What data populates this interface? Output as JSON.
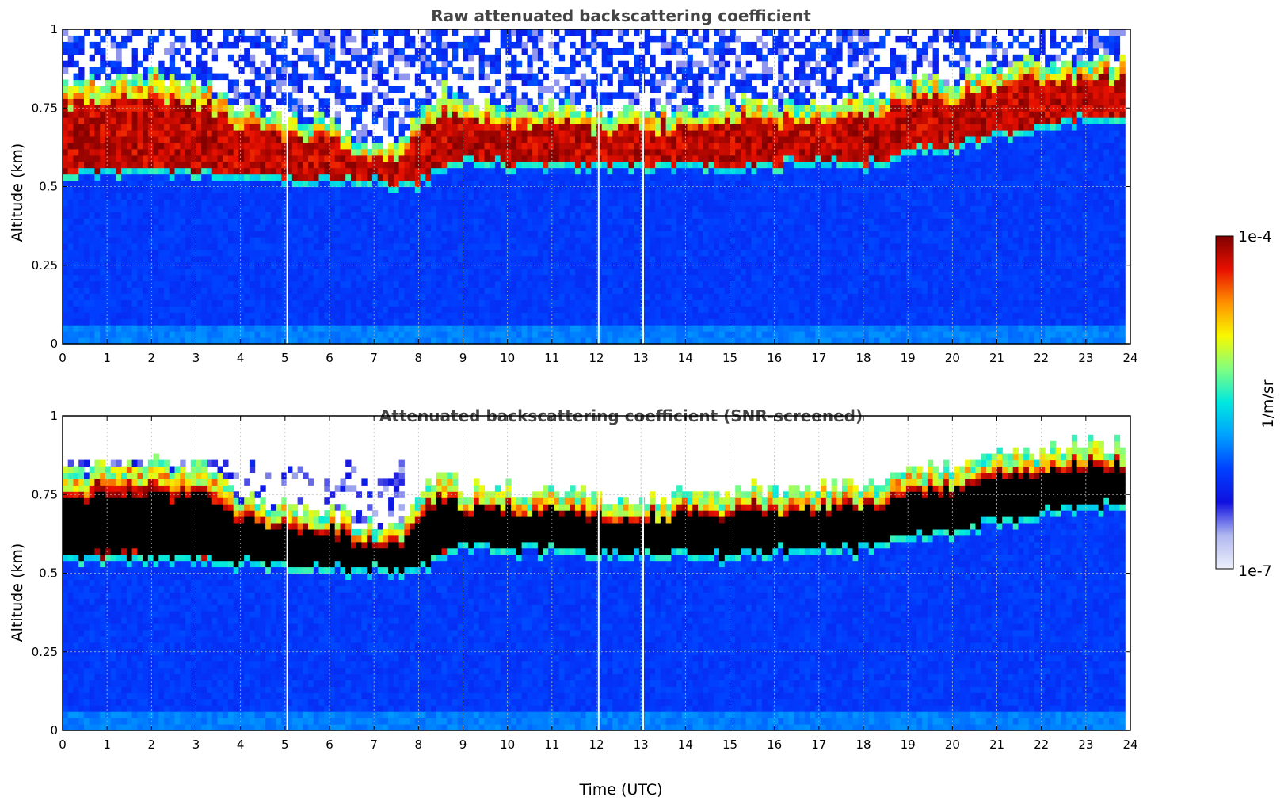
{
  "chart_data": [
    {
      "type": "heatmap",
      "title": "Raw attenuated backscattering coefficient",
      "xlabel": "",
      "ylabel": "Altitude (km)",
      "xlim": [
        0,
        24
      ],
      "ylim": [
        0,
        1
      ],
      "x_ticks": [
        "0",
        "1",
        "2",
        "3",
        "4",
        "5",
        "6",
        "7",
        "8",
        "9",
        "10",
        "11",
        "12",
        "13",
        "14",
        "15",
        "16",
        "17",
        "18",
        "19",
        "20",
        "21",
        "22",
        "23",
        "24"
      ],
      "y_ticks": [
        "0",
        "0.25",
        "0.5",
        "0.75",
        "1"
      ],
      "grid": true,
      "data_end_time": 23.8,
      "data_gaps_utc": [
        5.05,
        12.05,
        13.05
      ],
      "cloud_layer": {
        "time": [
          0,
          1,
          2,
          3,
          4,
          5,
          6,
          7,
          7.5,
          8,
          8.5,
          9,
          10,
          11,
          12,
          13,
          14,
          15,
          16,
          17,
          18,
          19,
          20,
          21,
          22,
          23,
          23.8
        ],
        "base_km": [
          0.53,
          0.54,
          0.53,
          0.53,
          0.52,
          0.51,
          0.5,
          0.5,
          0.48,
          0.5,
          0.55,
          0.57,
          0.56,
          0.56,
          0.55,
          0.55,
          0.55,
          0.54,
          0.56,
          0.57,
          0.56,
          0.6,
          0.62,
          0.65,
          0.68,
          0.7,
          0.7
        ],
        "top_km": [
          0.78,
          0.8,
          0.82,
          0.8,
          0.7,
          0.68,
          0.66,
          0.6,
          0.62,
          0.72,
          0.77,
          0.73,
          0.72,
          0.72,
          0.7,
          0.7,
          0.71,
          0.73,
          0.72,
          0.74,
          0.74,
          0.8,
          0.8,
          0.84,
          0.86,
          0.88,
          0.86
        ]
      }
    },
    {
      "type": "heatmap",
      "title": "Attenuated backscattering coefficient (SNR-screened)",
      "xlabel": "Time (UTC)",
      "ylabel": "Altitude (km)",
      "xlim": [
        0,
        24
      ],
      "ylim": [
        0,
        1
      ],
      "x_ticks": [
        "0",
        "1",
        "2",
        "3",
        "4",
        "5",
        "6",
        "7",
        "8",
        "9",
        "10",
        "11",
        "12",
        "13",
        "14",
        "15",
        "16",
        "17",
        "18",
        "19",
        "20",
        "21",
        "22",
        "23",
        "24"
      ],
      "y_ticks": [
        "0",
        "0.25",
        "0.5",
        "0.75",
        "1"
      ],
      "grid": true,
      "data_end_time": 23.8,
      "data_gaps_utc": [
        5.05,
        12.05,
        13.05
      ],
      "cloud_layer": {
        "time": [
          0,
          1,
          2,
          3,
          4,
          5,
          6,
          7,
          7.5,
          8,
          8.5,
          9,
          10,
          11,
          12,
          13,
          14,
          15,
          16,
          17,
          18,
          19,
          20,
          21,
          22,
          23,
          23.8
        ],
        "base_km": [
          0.53,
          0.54,
          0.53,
          0.53,
          0.52,
          0.51,
          0.5,
          0.5,
          0.48,
          0.5,
          0.55,
          0.57,
          0.56,
          0.56,
          0.55,
          0.55,
          0.55,
          0.54,
          0.56,
          0.57,
          0.56,
          0.6,
          0.62,
          0.65,
          0.68,
          0.7,
          0.7
        ],
        "top_km": [
          0.78,
          0.8,
          0.82,
          0.8,
          0.7,
          0.68,
          0.66,
          0.6,
          0.62,
          0.72,
          0.77,
          0.73,
          0.72,
          0.72,
          0.7,
          0.7,
          0.71,
          0.73,
          0.72,
          0.74,
          0.74,
          0.8,
          0.8,
          0.84,
          0.86,
          0.88,
          0.86
        ]
      }
    }
  ],
  "colorbar": {
    "label": "1/m/sr",
    "max_label": "1e-4",
    "min_label": "1e-7",
    "colormap": [
      "#eef0fb",
      "#b0b8f0",
      "#1010e0",
      "#0040ff",
      "#00a0ff",
      "#00e8e0",
      "#80ff80",
      "#f8f800",
      "#ff9000",
      "#e81000",
      "#800000"
    ]
  }
}
